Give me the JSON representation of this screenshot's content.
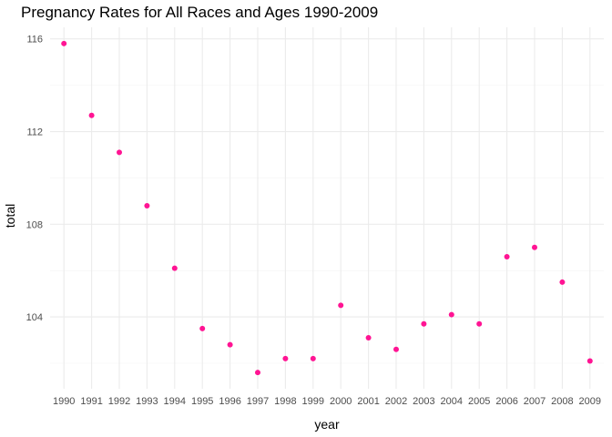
{
  "chart_data": {
    "type": "scatter",
    "title": "Pregnancy Rates for All Races and Ages 1990-2009",
    "xlabel": "year",
    "ylabel": "total",
    "x": [
      1990,
      1991,
      1992,
      1993,
      1994,
      1995,
      1996,
      1997,
      1998,
      1999,
      2000,
      2001,
      2002,
      2003,
      2004,
      2005,
      2006,
      2007,
      2008,
      2009
    ],
    "y": [
      115.8,
      112.7,
      111.1,
      108.8,
      106.1,
      103.5,
      102.8,
      101.6,
      102.2,
      102.2,
      104.5,
      103.1,
      102.6,
      103.7,
      104.1,
      103.7,
      106.6,
      107.0,
      105.5,
      102.1
    ],
    "x_tick_labels": [
      "1990",
      "1991",
      "1992",
      "1993",
      "1994",
      "1995",
      "1996",
      "1997",
      "1998",
      "1999",
      "2000",
      "2001",
      "2002",
      "2003",
      "2004",
      "2005",
      "2006",
      "2007",
      "2008",
      "2009"
    ],
    "y_ticks": [
      104,
      108,
      112,
      116
    ],
    "y_tick_labels": [
      "104",
      "108",
      "112",
      "116"
    ],
    "xlim": [
      1989.5,
      2009.5
    ],
    "ylim": [
      100.9,
      116.5
    ],
    "grid": true,
    "point_color": "#ff1493",
    "background": "#ffffff"
  }
}
